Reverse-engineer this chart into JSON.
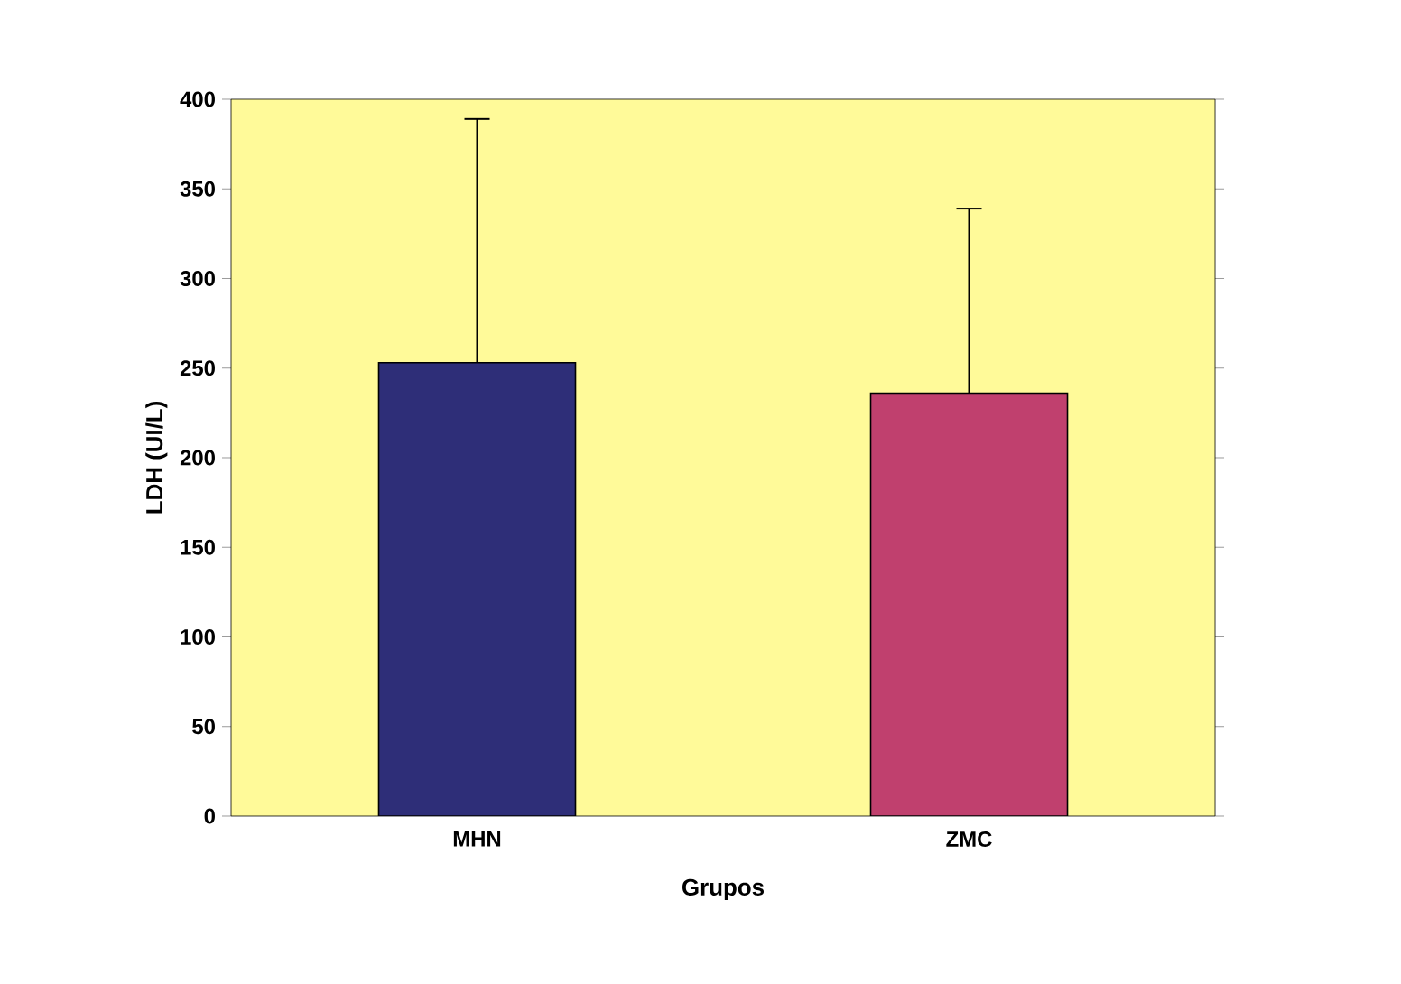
{
  "chart_data": {
    "type": "bar",
    "xlabel": "Grupos",
    "ylabel": "LDH (UI/L)",
    "categories": [
      "MHN",
      "ZMC"
    ],
    "values": [
      253,
      236
    ],
    "colors": [
      "#2e2e78",
      "#c0406e"
    ],
    "errors": [
      [
        253,
        389
      ],
      [
        236,
        339
      ]
    ],
    "ylim": [
      0,
      400
    ],
    "yticks": [
      0,
      50,
      100,
      150,
      200,
      250,
      300,
      350,
      400
    ],
    "grid": false
  }
}
